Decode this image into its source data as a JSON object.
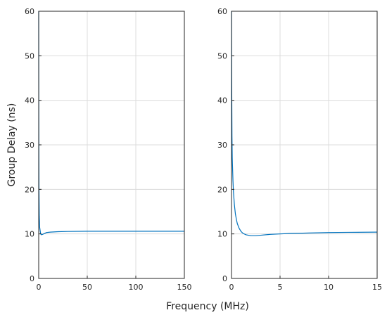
{
  "figure": {
    "xlabel": "Frequency (MHz)",
    "ylabel": "Group Delay (ns)"
  },
  "chart_data": [
    {
      "type": "line",
      "xlim": [
        0,
        150
      ],
      "ylim": [
        0,
        60
      ],
      "xticks": [
        0,
        50,
        100,
        150
      ],
      "yticks": [
        0,
        10,
        20,
        30,
        40,
        50,
        60
      ],
      "grid": true,
      "color": "#0072bd",
      "series": [
        {
          "x": [
            0,
            0.05,
            0.15,
            0.3,
            0.6,
            1,
            2,
            3,
            5,
            8,
            12,
            20,
            30,
            50,
            75,
            100,
            125,
            150
          ],
          "y": [
            60,
            45,
            30,
            20,
            14,
            11.5,
            10,
            9.8,
            10,
            10.3,
            10.4,
            10.5,
            10.55,
            10.6,
            10.6,
            10.6,
            10.6,
            10.6
          ]
        }
      ]
    },
    {
      "type": "line",
      "xlim": [
        0,
        15
      ],
      "ylim": [
        0,
        60
      ],
      "xticks": [
        0,
        5,
        10,
        15
      ],
      "yticks": [
        0,
        10,
        20,
        30,
        40,
        50,
        60
      ],
      "grid": true,
      "color": "#0072bd",
      "series": [
        {
          "x": [
            0,
            0.02,
            0.05,
            0.08,
            0.1,
            0.15,
            0.2,
            0.3,
            0.4,
            0.5,
            0.6,
            0.8,
            1,
            1.2,
            1.5,
            2,
            2.5,
            3,
            4,
            5,
            6,
            7,
            8,
            10,
            12,
            15
          ],
          "y": [
            60,
            45,
            32,
            27,
            25.5,
            22,
            19.5,
            16.5,
            14.5,
            13.3,
            12.3,
            11.2,
            10.5,
            10.1,
            9.8,
            9.6,
            9.6,
            9.7,
            9.9,
            10.0,
            10.1,
            10.15,
            10.2,
            10.3,
            10.35,
            10.4
          ]
        }
      ]
    }
  ]
}
